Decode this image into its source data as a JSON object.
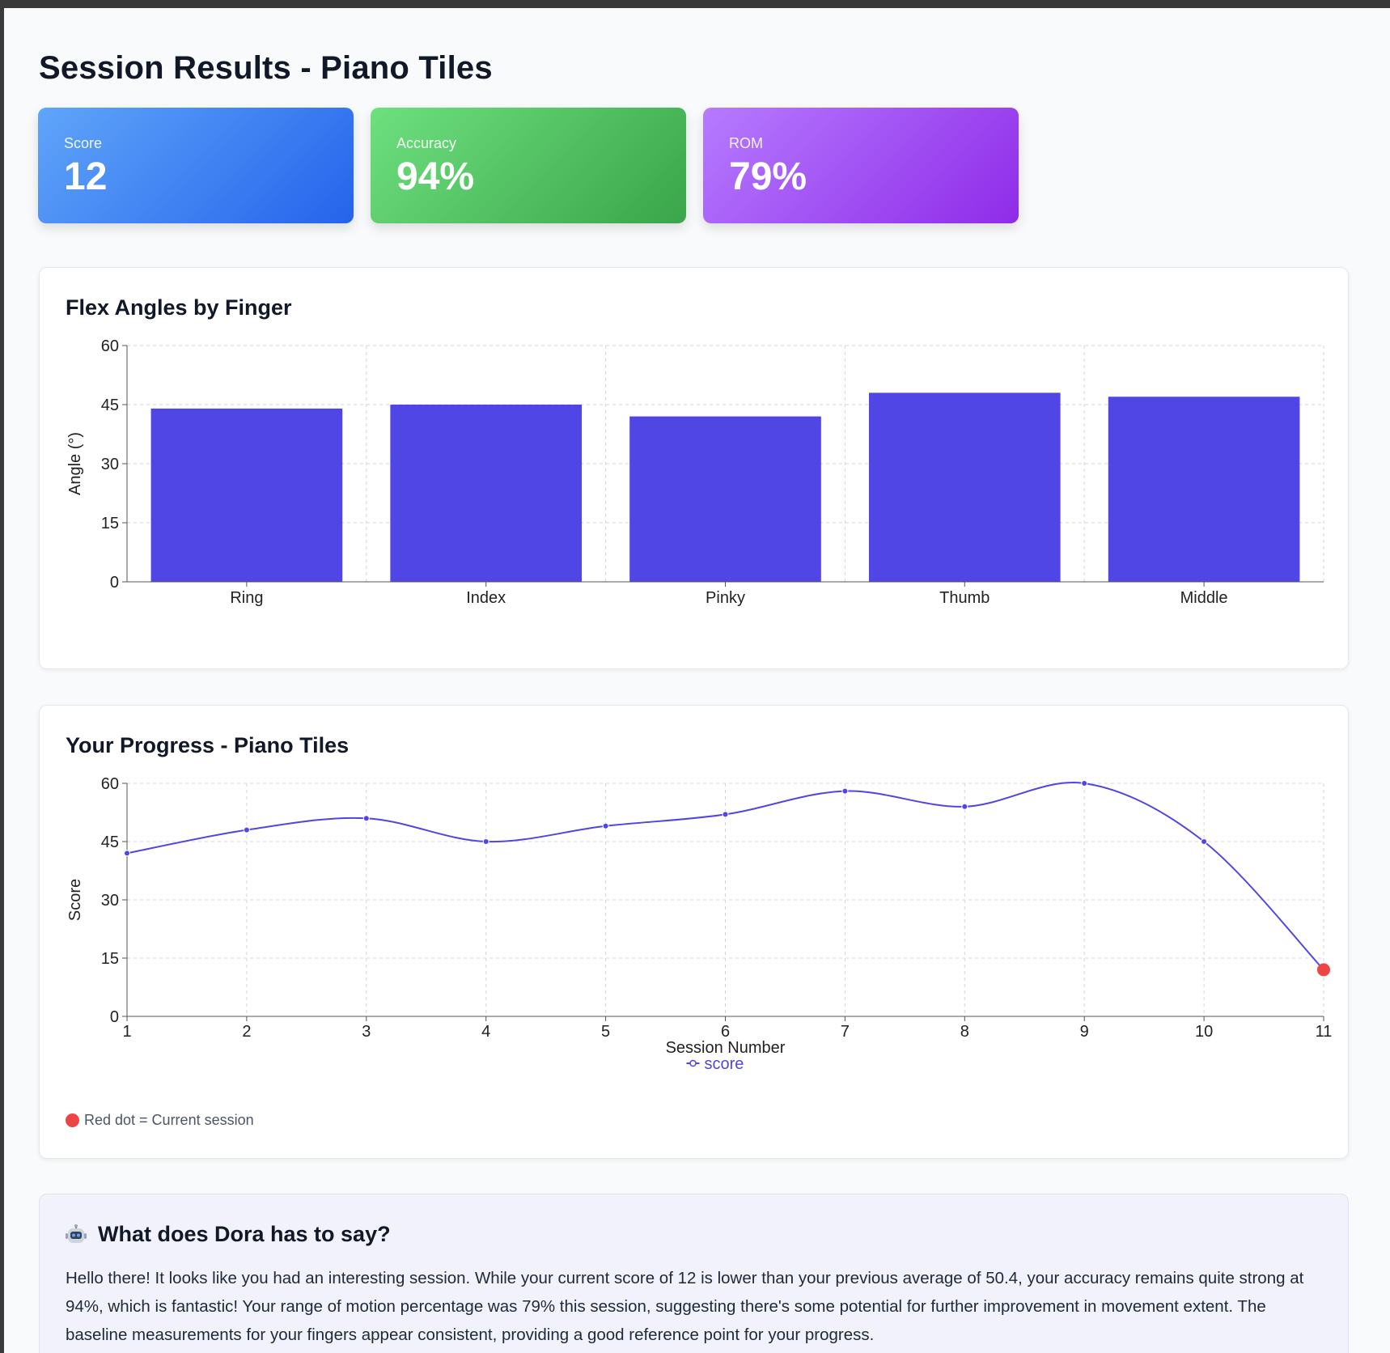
{
  "page": {
    "title": "Session Results - Piano Tiles"
  },
  "stats": {
    "score": {
      "label": "Score",
      "value": "12"
    },
    "accuracy": {
      "label": "Accuracy",
      "value": "94%"
    },
    "rom": {
      "label": "ROM",
      "value": "79%"
    }
  },
  "flex_panel": {
    "title": "Flex Angles by Finger"
  },
  "progress_panel": {
    "title": "Your Progress - Piano Tiles",
    "note": "Red dot = Current session"
  },
  "ai_panel": {
    "title": "What does Dora has to say?",
    "icon": "robot-icon",
    "text": "Hello there! It looks like you had an interesting session. While your current score of 12 is lower than your previous average of 50.4, your accuracy remains quite strong at 94%, which is fantastic! Your range of motion percentage was 79% this session, suggesting there's some potential for further improvement in movement extent. The baseline measurements for your fingers appear consistent, providing a good reference point for your progress."
  },
  "colors": {
    "bar": "#4f46e5",
    "line": "#4f46e5",
    "current": "#ef4444",
    "grid": "#d1d5db"
  },
  "chart_data": [
    {
      "type": "bar",
      "title": "Flex Angles by Finger",
      "categories": [
        "Ring",
        "Index",
        "Pinky",
        "Thumb",
        "Middle"
      ],
      "values": [
        44,
        45,
        42,
        48,
        47
      ],
      "xlabel": "",
      "ylabel": "Angle (°)",
      "ylim": [
        0,
        60
      ],
      "yticks": [
        0,
        15,
        30,
        45,
        60
      ],
      "grid": true
    },
    {
      "type": "line",
      "title": "Your Progress - Piano Tiles",
      "x": [
        1,
        2,
        3,
        4,
        5,
        6,
        7,
        8,
        9,
        10,
        11
      ],
      "series": [
        {
          "name": "score",
          "values": [
            42,
            48,
            51,
            45,
            49,
            52,
            58,
            54,
            60,
            45,
            12
          ]
        }
      ],
      "xlabel": "Session Number",
      "ylabel": "Score",
      "ylim": [
        0,
        60
      ],
      "yticks": [
        0,
        15,
        30,
        45,
        60
      ],
      "legend": "bottom-center",
      "grid": true,
      "highlight_last": true
    }
  ]
}
